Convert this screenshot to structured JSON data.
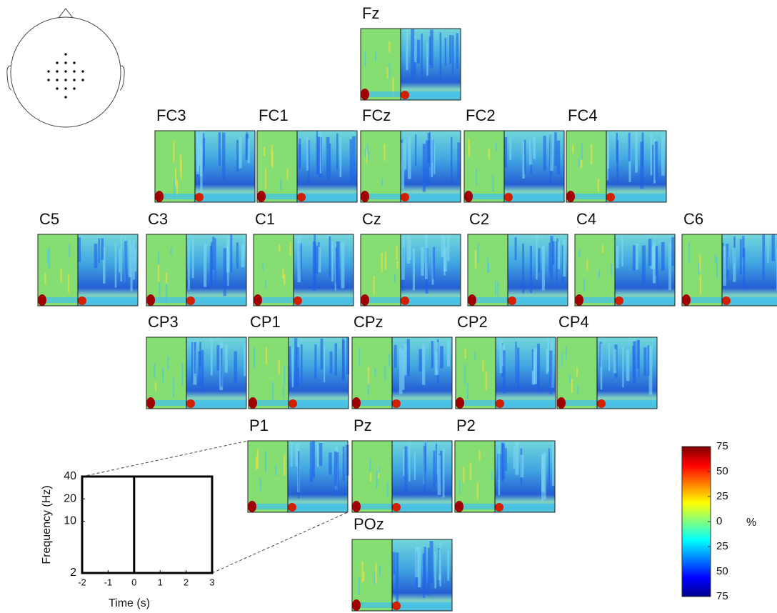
{
  "chart_data": {
    "type": "topoplot",
    "rows": [
      [
        "Fz"
      ],
      [
        "FC3",
        "FC1",
        "FCz",
        "FC2",
        "FC4"
      ],
      [
        "C5",
        "C3",
        "C1",
        "Cz",
        "C2",
        "C4",
        "C6"
      ],
      [
        "CP3",
        "CP1",
        "CPz",
        "CP2",
        "CP4"
      ],
      [
        "P1",
        "Pz",
        "P2"
      ],
      [
        "POz"
      ]
    ],
    "key": {
      "xlabel": "Time (s)",
      "ylabel": "Frequency (Hz)",
      "xlim": [
        -2,
        3
      ],
      "xticks": [
        -2,
        -1,
        0,
        1,
        2,
        3
      ],
      "ylim": [
        2,
        40
      ],
      "yticks": [
        2,
        10,
        20,
        40
      ],
      "log_y": true
    },
    "colorbar": {
      "label": "%",
      "lim": [
        -75,
        75
      ],
      "ticks": [
        75,
        50,
        25,
        0,
        {
          "value": -25,
          "label": "25"
        },
        {
          "value": -50,
          "label": "50"
        },
        {
          "value": -75,
          "label": "75"
        }
      ]
    }
  }
}
